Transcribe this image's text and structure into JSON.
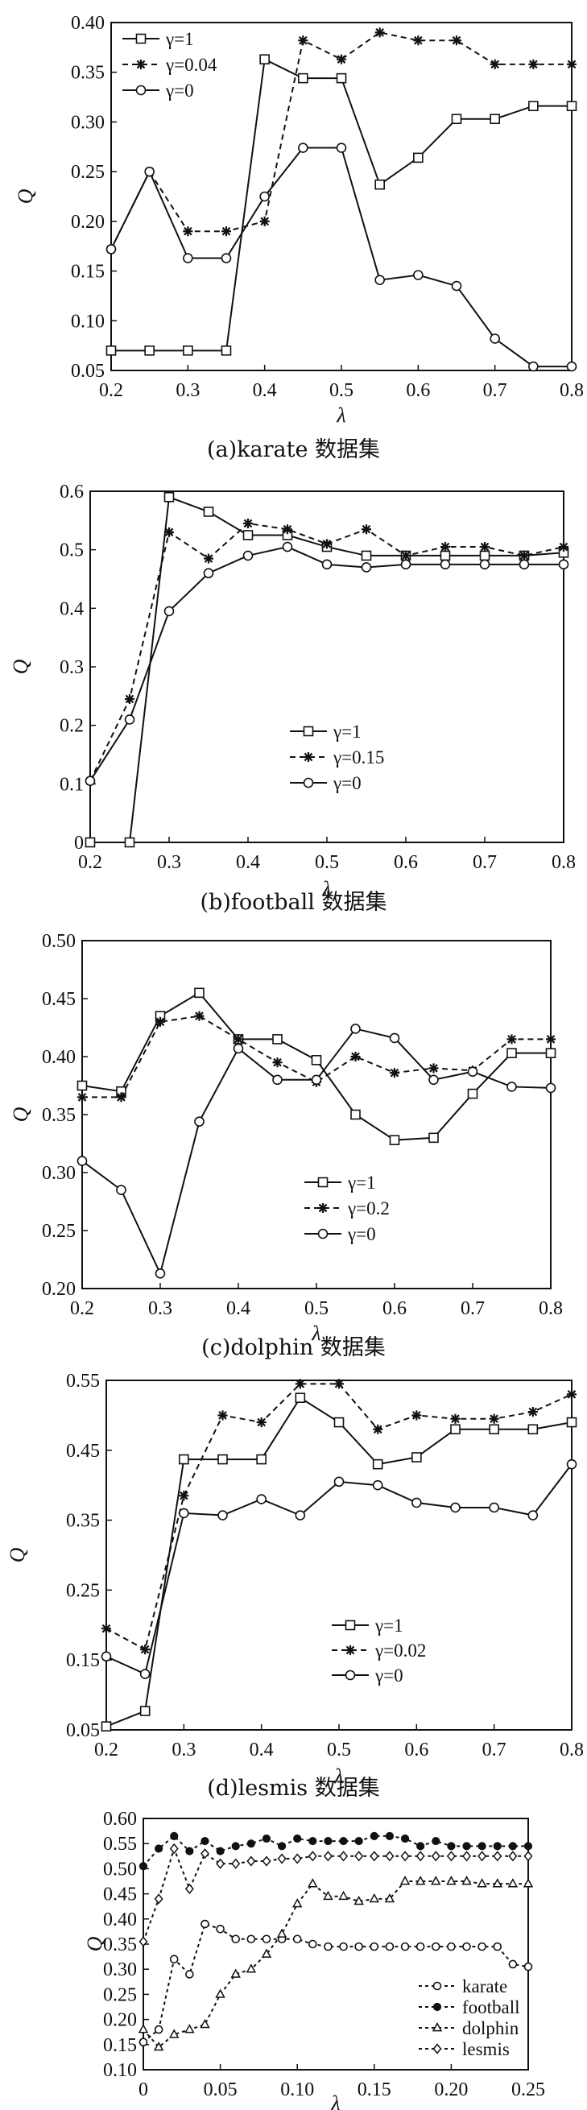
{
  "chart_data": [
    {
      "type": "line",
      "caption": "(a)karate 数据集",
      "xlabel": "λ",
      "ylabel": "Q",
      "xlim": [
        0.2,
        0.8
      ],
      "ylim": [
        0.05,
        0.4
      ],
      "xticks": [
        "0.2",
        "0.3",
        "0.4",
        "0.5",
        "0.6",
        "0.7",
        "0.8"
      ],
      "yticks": [
        "0.05",
        "0.10",
        "0.15",
        "0.20",
        "0.25",
        "0.30",
        "0.35",
        "0.40"
      ],
      "legend_position": "top-left",
      "x": [
        0.2,
        0.25,
        0.3,
        0.35,
        0.4,
        0.45,
        0.5,
        0.55,
        0.6,
        0.65,
        0.7,
        0.75,
        0.8
      ],
      "series": [
        {
          "name": "γ=1",
          "marker": "square",
          "dash": "solid",
          "values": [
            0.07,
            0.07,
            0.07,
            0.07,
            0.363,
            0.344,
            0.344,
            0.237,
            0.264,
            0.303,
            0.303,
            0.316,
            0.316
          ]
        },
        {
          "name": "γ=0.04",
          "marker": "star",
          "dash": "dashed",
          "values": [
            0.172,
            0.25,
            0.19,
            0.19,
            0.2,
            0.382,
            0.363,
            0.39,
            0.382,
            0.382,
            0.358,
            0.358,
            0.358
          ]
        },
        {
          "name": "γ=0",
          "marker": "circle",
          "dash": "solid",
          "values": [
            0.172,
            0.25,
            0.163,
            0.163,
            0.225,
            0.274,
            0.274,
            0.141,
            0.146,
            0.135,
            0.082,
            0.054,
            0.054
          ]
        }
      ]
    },
    {
      "type": "line",
      "caption": "(b)football 数据集",
      "xlabel": "λ",
      "ylabel": "Q",
      "xlim": [
        0.2,
        0.8
      ],
      "ylim": [
        0,
        0.6
      ],
      "xticks": [
        "0.2",
        "0.3",
        "0.4",
        "0.5",
        "0.6",
        "0.7",
        "0.8"
      ],
      "yticks": [
        "0",
        "0.1",
        "0.2",
        "0.3",
        "0.4",
        "0.5",
        "0.6"
      ],
      "legend_position": "bottom-left",
      "x": [
        0.2,
        0.25,
        0.3,
        0.35,
        0.4,
        0.45,
        0.5,
        0.55,
        0.6,
        0.65,
        0.7,
        0.75,
        0.8
      ],
      "series": [
        {
          "name": "γ=1",
          "marker": "square",
          "dash": "solid",
          "values": [
            0.0,
            0.0,
            0.59,
            0.565,
            0.525,
            0.525,
            0.505,
            0.49,
            0.49,
            0.49,
            0.49,
            0.49,
            0.495
          ]
        },
        {
          "name": "γ=0.15",
          "marker": "star",
          "dash": "dashed",
          "values": [
            0.105,
            0.245,
            0.53,
            0.485,
            0.545,
            0.535,
            0.51,
            0.535,
            0.49,
            0.505,
            0.505,
            0.49,
            0.505
          ]
        },
        {
          "name": "γ=0",
          "marker": "circle",
          "dash": "solid",
          "values": [
            0.105,
            0.21,
            0.395,
            0.46,
            0.49,
            0.505,
            0.475,
            0.47,
            0.475,
            0.475,
            0.475,
            0.475,
            0.475
          ]
        }
      ]
    },
    {
      "type": "line",
      "caption": "(c)dolphin 数据集",
      "xlabel": "λ",
      "ylabel": "Q",
      "xlim": [
        0.2,
        0.8
      ],
      "ylim": [
        0.2,
        0.5
      ],
      "xticks": [
        "0.2",
        "0.3",
        "0.4",
        "0.5",
        "0.6",
        "0.7",
        "0.8"
      ],
      "yticks": [
        "0.20",
        "0.25",
        "0.30",
        "0.35",
        "0.40",
        "0.45",
        "0.50"
      ],
      "legend_position": "bottom-center",
      "x": [
        0.2,
        0.25,
        0.3,
        0.35,
        0.4,
        0.45,
        0.5,
        0.55,
        0.6,
        0.65,
        0.7,
        0.75,
        0.8
      ],
      "series": [
        {
          "name": "γ=1",
          "marker": "square",
          "dash": "solid",
          "values": [
            0.375,
            0.37,
            0.435,
            0.455,
            0.415,
            0.415,
            0.397,
            0.35,
            0.328,
            0.33,
            0.368,
            0.403,
            0.403
          ]
        },
        {
          "name": "γ=0.2",
          "marker": "star",
          "dash": "dashed",
          "values": [
            0.365,
            0.365,
            0.43,
            0.435,
            0.415,
            0.395,
            0.378,
            0.4,
            0.386,
            0.39,
            0.388,
            0.415,
            0.415
          ]
        },
        {
          "name": "γ=0",
          "marker": "circle",
          "dash": "solid",
          "values": [
            0.31,
            0.285,
            0.213,
            0.344,
            0.407,
            0.38,
            0.38,
            0.424,
            0.416,
            0.38,
            0.387,
            0.374,
            0.373
          ]
        }
      ]
    },
    {
      "type": "line",
      "caption": "(d)lesmis 数据集",
      "xlabel": "λ",
      "ylabel": "Q",
      "xlim": [
        0.2,
        0.8
      ],
      "ylim": [
        0.05,
        0.55
      ],
      "xticks": [
        "0.2",
        "0.3",
        "0.4",
        "0.5",
        "0.6",
        "0.7",
        "0.8"
      ],
      "yticks": [
        "0.05",
        "0.15",
        "0.25",
        "0.35",
        "0.45",
        "0.55"
      ],
      "legend_position": "bottom-center",
      "x": [
        0.2,
        0.25,
        0.3,
        0.35,
        0.4,
        0.45,
        0.5,
        0.55,
        0.6,
        0.65,
        0.7,
        0.75,
        0.8
      ],
      "series": [
        {
          "name": "γ=1",
          "marker": "square",
          "dash": "solid",
          "values": [
            0.055,
            0.077,
            0.437,
            0.437,
            0.437,
            0.525,
            0.49,
            0.43,
            0.44,
            0.48,
            0.48,
            0.48,
            0.49
          ]
        },
        {
          "name": "γ=0.02",
          "marker": "star",
          "dash": "dashed",
          "values": [
            0.195,
            0.165,
            0.385,
            0.5,
            0.49,
            0.545,
            0.545,
            0.48,
            0.5,
            0.495,
            0.495,
            0.505,
            0.53
          ]
        },
        {
          "name": "γ=0",
          "marker": "circle",
          "dash": "solid",
          "values": [
            0.155,
            0.13,
            0.36,
            0.357,
            0.38,
            0.357,
            0.405,
            0.4,
            0.375,
            0.368,
            0.368,
            0.357,
            0.43
          ]
        }
      ]
    },
    {
      "type": "line",
      "caption": "",
      "xlabel": "λ",
      "ylabel": "Q",
      "xlim": [
        0,
        0.25
      ],
      "ylim": [
        0.1,
        0.6
      ],
      "xticks": [
        "0",
        "0.05",
        "0.10",
        "0.15",
        "0.20",
        "0.25"
      ],
      "yticks": [
        "0.10",
        "0.15",
        "0.20",
        "0.25",
        "0.30",
        "0.35",
        "0.40",
        "0.45",
        "0.50",
        "0.55",
        "0.60"
      ],
      "legend_position": "bottom-right",
      "x": [
        0,
        0.01,
        0.02,
        0.03,
        0.04,
        0.05,
        0.06,
        0.07,
        0.08,
        0.09,
        0.1,
        0.11,
        0.12,
        0.13,
        0.14,
        0.15,
        0.16,
        0.17,
        0.18,
        0.19,
        0.2,
        0.21,
        0.22,
        0.23,
        0.24,
        0.25
      ],
      "series": [
        {
          "name": "karate",
          "marker": "open-circle",
          "dash": "dashed",
          "values": [
            0.155,
            0.18,
            0.32,
            0.29,
            0.39,
            0.38,
            0.36,
            0.36,
            0.36,
            0.36,
            0.36,
            0.35,
            0.345,
            0.345,
            0.345,
            0.345,
            0.345,
            0.345,
            0.345,
            0.345,
            0.345,
            0.345,
            0.345,
            0.345,
            0.31,
            0.305
          ]
        },
        {
          "name": "football",
          "marker": "filled-circle",
          "dash": "dashed",
          "values": [
            0.505,
            0.54,
            0.565,
            0.535,
            0.555,
            0.535,
            0.545,
            0.55,
            0.56,
            0.545,
            0.56,
            0.555,
            0.555,
            0.555,
            0.555,
            0.565,
            0.565,
            0.56,
            0.545,
            0.555,
            0.545,
            0.545,
            0.545,
            0.545,
            0.545,
            0.545
          ]
        },
        {
          "name": "dolphin",
          "marker": "triangle",
          "dash": "dashed",
          "values": [
            0.18,
            0.145,
            0.17,
            0.18,
            0.19,
            0.25,
            0.29,
            0.3,
            0.33,
            0.37,
            0.43,
            0.47,
            0.445,
            0.445,
            0.435,
            0.44,
            0.44,
            0.475,
            0.475,
            0.475,
            0.475,
            0.475,
            0.47,
            0.47,
            0.47,
            0.47
          ]
        },
        {
          "name": "lesmis",
          "marker": "diamond",
          "dash": "dashed",
          "values": [
            0.355,
            0.44,
            0.54,
            0.46,
            0.53,
            0.51,
            0.51,
            0.515,
            0.515,
            0.52,
            0.52,
            0.525,
            0.525,
            0.525,
            0.525,
            0.525,
            0.525,
            0.525,
            0.525,
            0.525,
            0.525,
            0.525,
            0.525,
            0.525,
            0.525,
            0.525
          ]
        }
      ]
    }
  ]
}
